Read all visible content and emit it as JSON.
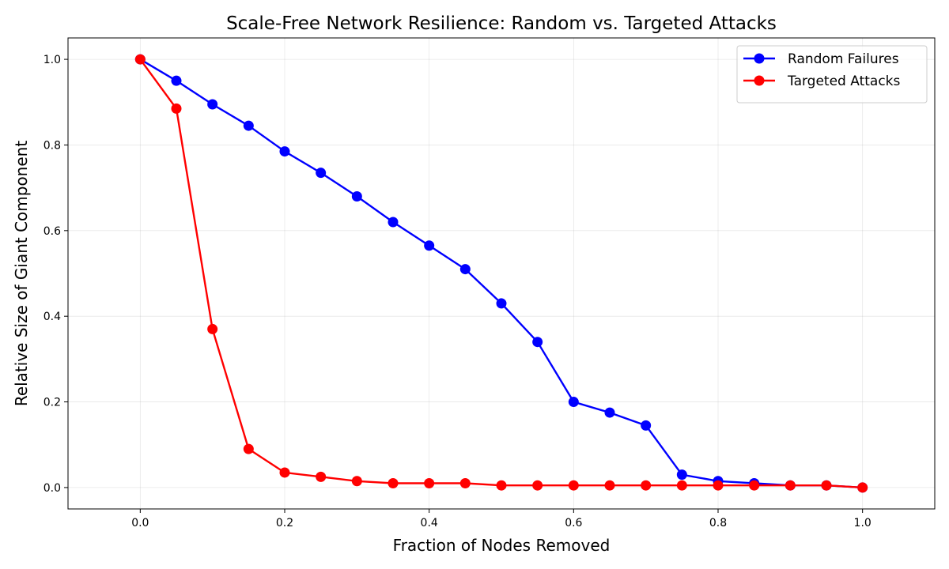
{
  "chart_data": {
    "type": "line",
    "title": "Scale-Free Network Resilience: Random vs. Targeted Attacks",
    "xlabel": "Fraction of Nodes Removed",
    "ylabel": "Relative Size of Giant Component",
    "xlim": [
      -0.1,
      1.1
    ],
    "ylim": [
      -0.05,
      1.05
    ],
    "xticks": [
      0.0,
      0.2,
      0.4,
      0.6,
      0.8,
      1.0
    ],
    "yticks": [
      0.0,
      0.2,
      0.4,
      0.6,
      0.8,
      1.0
    ],
    "x_tick_labels": [
      "0.0",
      "0.2",
      "0.4",
      "0.6",
      "0.8",
      "1.0"
    ],
    "y_tick_labels": [
      "0.0",
      "0.2",
      "0.4",
      "0.6",
      "0.8",
      "1.0"
    ],
    "grid": true,
    "legend_position": "top-right",
    "x": [
      0.0,
      0.05,
      0.1,
      0.15,
      0.2,
      0.25,
      0.3,
      0.35,
      0.4,
      0.45,
      0.5,
      0.55,
      0.6,
      0.65,
      0.7,
      0.75,
      0.8,
      0.85,
      0.9,
      0.95,
      1.0
    ],
    "series": [
      {
        "name": "Random Failures",
        "color": "#0000ff",
        "values": [
          1.0,
          0.95,
          0.895,
          0.845,
          0.785,
          0.735,
          0.68,
          0.62,
          0.565,
          0.51,
          0.43,
          0.34,
          0.2,
          0.175,
          0.145,
          0.03,
          0.015,
          0.01,
          0.005,
          0.005,
          0.0
        ]
      },
      {
        "name": "Targeted Attacks",
        "color": "#ff0000",
        "values": [
          1.0,
          0.885,
          0.37,
          0.09,
          0.035,
          0.025,
          0.015,
          0.01,
          0.01,
          0.01,
          0.005,
          0.005,
          0.005,
          0.005,
          0.005,
          0.005,
          0.005,
          0.005,
          0.005,
          0.005,
          0.0
        ]
      }
    ]
  }
}
